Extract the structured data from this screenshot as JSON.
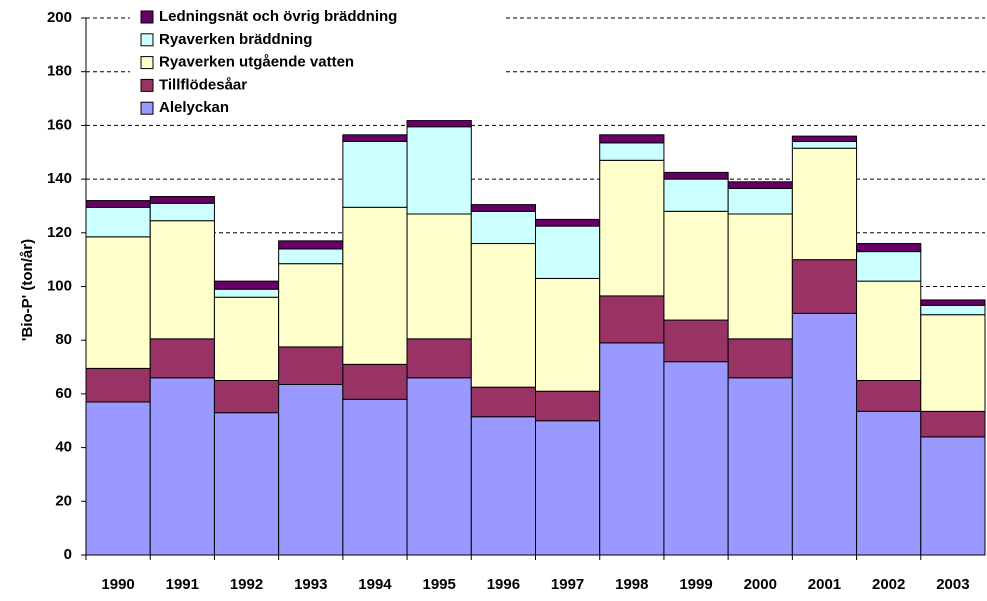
{
  "chart_data": {
    "type": "stacked_bar",
    "ylabel": "'Bio-P' (ton/år)",
    "categories": [
      "1990",
      "1991",
      "1992",
      "1993",
      "1994",
      "1995",
      "1996",
      "1997",
      "1998",
      "1999",
      "2000",
      "2001",
      "2002",
      "2003"
    ],
    "series": [
      {
        "name": "Alelyckan",
        "color": "#9999ff",
        "values": [
          57,
          66,
          53,
          63.5,
          58,
          66,
          51.5,
          50,
          79,
          72,
          66,
          90,
          53.5,
          44
        ]
      },
      {
        "name": "Tillflödesåar",
        "color": "#993366",
        "values": [
          12.5,
          14.5,
          12,
          14,
          13,
          14.5,
          11,
          11,
          17.5,
          15.5,
          14.5,
          20,
          11.5,
          9.5
        ]
      },
      {
        "name": "Ryaverken utgående vatten",
        "color": "#ffffcc",
        "values": [
          49,
          44,
          31,
          31,
          58.5,
          46.5,
          53.5,
          42,
          50.5,
          40.5,
          46.5,
          41.5,
          37,
          36
        ]
      },
      {
        "name": "Ryaverken bräddning",
        "color": "#ccffff",
        "values": [
          11,
          6.5,
          3,
          5.5,
          24.5,
          32.5,
          12,
          19.5,
          6.5,
          12,
          9.5,
          2.5,
          11,
          3.5
        ]
      },
      {
        "name": "Ledningsnät och övrig bräddning",
        "color": "#660066",
        "values": [
          2.5,
          2.5,
          3,
          3,
          2.5,
          2.5,
          2.5,
          2.5,
          3,
          2.5,
          2.5,
          2,
          3,
          2
        ]
      }
    ],
    "ylim": [
      0,
      200
    ],
    "yticks": [
      0,
      20,
      40,
      60,
      80,
      100,
      120,
      140,
      160,
      180,
      200
    ],
    "grid": true,
    "legend": "upper left"
  }
}
